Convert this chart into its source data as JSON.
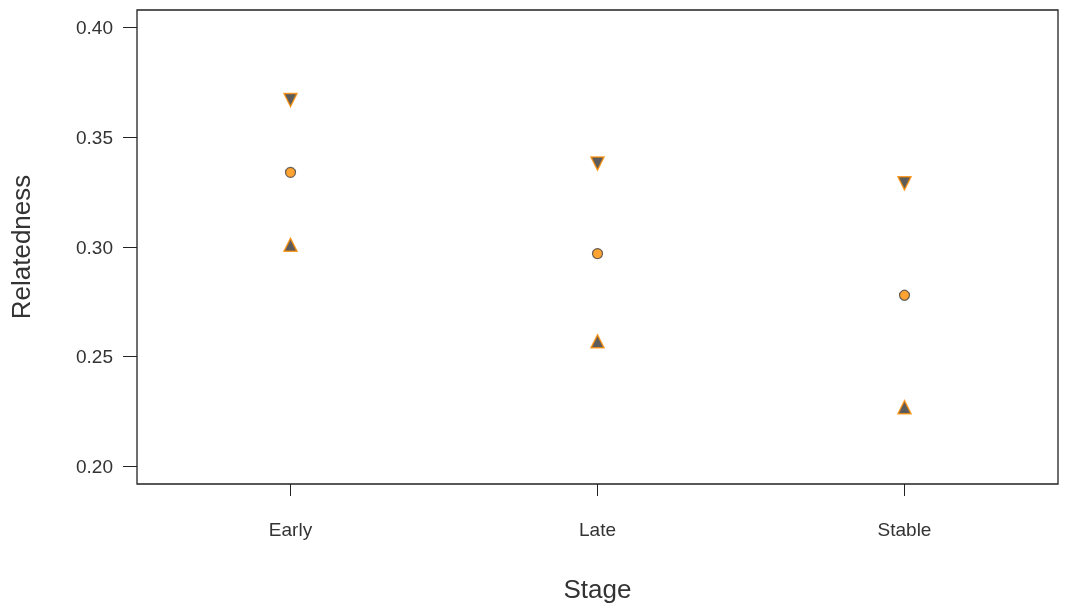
{
  "chart_data": {
    "type": "scatter",
    "xlabel": "Stage",
    "ylabel": "Relatedness",
    "categories": [
      "Early",
      "Late",
      "Stable"
    ],
    "series": [
      {
        "color": "#333333",
        "marker": "triangle-down",
        "values": [
          0.367,
          0.338,
          0.329
        ]
      },
      {
        "color": "#ff8c00",
        "marker": "circle",
        "values": [
          0.334,
          0.297,
          0.278
        ]
      },
      {
        "color": "#333333",
        "marker": "triangle",
        "values": [
          0.301,
          0.257,
          0.227
        ]
      }
    ],
    "ylim": [
      0.192,
      0.408
    ],
    "yticks": [
      {
        "value": 0.2,
        "label": "0.20"
      },
      {
        "value": 0.25,
        "label": "0.25"
      },
      {
        "value": 0.3,
        "label": "0.30"
      },
      {
        "value": 0.35,
        "label": "0.35"
      },
      {
        "value": 0.4,
        "label": "0.40"
      }
    ],
    "grid": false
  }
}
